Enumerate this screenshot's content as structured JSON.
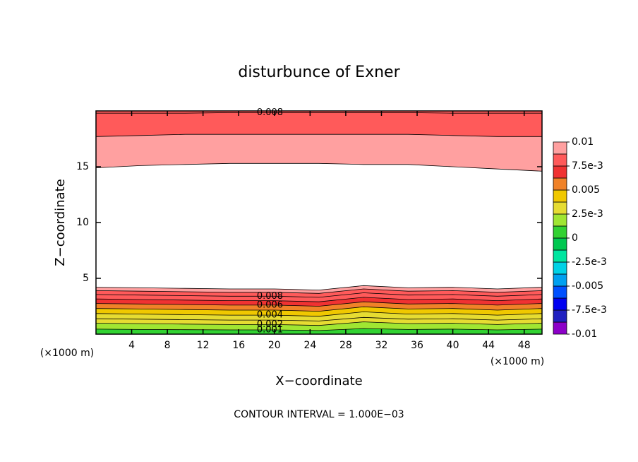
{
  "chart_data": {
    "type": "contour",
    "title": "disturbunce of Exner",
    "xlabel": "X−coordinate",
    "ylabel": "Z−coordinate",
    "x_unit": "(×1000 m)",
    "note": "CONTOUR INTERVAL = 1.000E−03",
    "contour_interval": 0.001,
    "xlim": [
      0,
      50
    ],
    "xticks": [
      4,
      8,
      12,
      16,
      20,
      24,
      28,
      32,
      36,
      40,
      44,
      48
    ],
    "ylim": [
      0,
      20
    ],
    "yticks": [
      5,
      10,
      15
    ],
    "x": [
      0,
      5,
      10,
      15,
      20,
      25,
      30,
      35,
      40,
      45,
      50
    ],
    "lower_contours": [
      {
        "level": 0.001,
        "labeled": true,
        "z": [
          0.45,
          0.42,
          0.4,
          0.38,
          0.38,
          0.32,
          0.5,
          0.42,
          0.45,
          0.38,
          0.45
        ]
      },
      {
        "level": 0.002,
        "labeled": true,
        "z": [
          0.98,
          0.94,
          0.9,
          0.86,
          0.86,
          0.78,
          1.1,
          0.94,
          0.98,
          0.86,
          0.98
        ]
      },
      {
        "level": 0.003,
        "labeled": false,
        "z": [
          1.38,
          1.34,
          1.3,
          1.26,
          1.26,
          1.18,
          1.5,
          1.34,
          1.38,
          1.26,
          1.38
        ]
      },
      {
        "level": 0.004,
        "labeled": true,
        "z": [
          1.85,
          1.8,
          1.75,
          1.7,
          1.7,
          1.6,
          2.0,
          1.8,
          1.85,
          1.7,
          1.85
        ]
      },
      {
        "level": 0.005,
        "labeled": false,
        "z": [
          2.3,
          2.25,
          2.2,
          2.15,
          2.15,
          2.05,
          2.45,
          2.25,
          2.3,
          2.15,
          2.3
        ]
      },
      {
        "level": 0.006,
        "labeled": true,
        "z": [
          2.75,
          2.7,
          2.65,
          2.6,
          2.6,
          2.5,
          2.9,
          2.7,
          2.75,
          2.6,
          2.75
        ]
      },
      {
        "level": 0.007,
        "labeled": false,
        "z": [
          3.15,
          3.1,
          3.05,
          3.0,
          3.0,
          2.9,
          3.3,
          3.1,
          3.15,
          3.0,
          3.15
        ]
      },
      {
        "level": 0.008,
        "labeled": true,
        "z": [
          3.55,
          3.5,
          3.45,
          3.4,
          3.4,
          3.3,
          3.7,
          3.5,
          3.55,
          3.4,
          3.55
        ]
      },
      {
        "level": 0.009,
        "labeled": false,
        "z": [
          3.9,
          3.85,
          3.8,
          3.75,
          3.75,
          3.65,
          4.05,
          3.85,
          3.9,
          3.75,
          3.9
        ]
      },
      {
        "level": 0.01,
        "labeled": false,
        "z": [
          4.2,
          4.15,
          4.1,
          4.05,
          4.05,
          3.95,
          4.35,
          4.15,
          4.2,
          4.05,
          4.2
        ]
      }
    ],
    "upper_contours": [
      {
        "level": 0.01,
        "labeled": false,
        "z": [
          14.9,
          15.1,
          15.2,
          15.3,
          15.3,
          15.3,
          15.2,
          15.2,
          15.0,
          14.8,
          14.6
        ]
      },
      {
        "level": 0.009,
        "labeled": false,
        "z": [
          17.7,
          17.8,
          17.9,
          17.9,
          17.9,
          17.9,
          17.9,
          17.9,
          17.8,
          17.7,
          17.7
        ]
      },
      {
        "level": 0.008,
        "labeled": true,
        "z": [
          19.8,
          19.8,
          19.8,
          19.85,
          19.85,
          19.85,
          19.85,
          19.85,
          19.8,
          19.8,
          19.8
        ]
      }
    ],
    "clim": [
      -0.01,
      0.01
    ],
    "colors": [
      "#8c00c8",
      "#2020c0",
      "#0000f0",
      "#0050ff",
      "#00a0f0",
      "#00d2e6",
      "#00e6a0",
      "#00c850",
      "#32d232",
      "#a0e632",
      "#e6dc32",
      "#f0c800",
      "#f08228",
      "#f03232",
      "#ff5a5a",
      "#ffa0a0"
    ],
    "cticks": [
      0.01,
      {
        "value": 0.0075,
        "label": "7.5e-3"
      },
      0.005,
      {
        "value": 0.0025,
        "label": "2.5e-3"
      },
      0,
      {
        "value": -0.0025,
        "label": "-2.5e-3"
      },
      -0.005,
      {
        "value": -0.0075,
        "label": "-7.5e-3"
      },
      -0.01
    ]
  }
}
